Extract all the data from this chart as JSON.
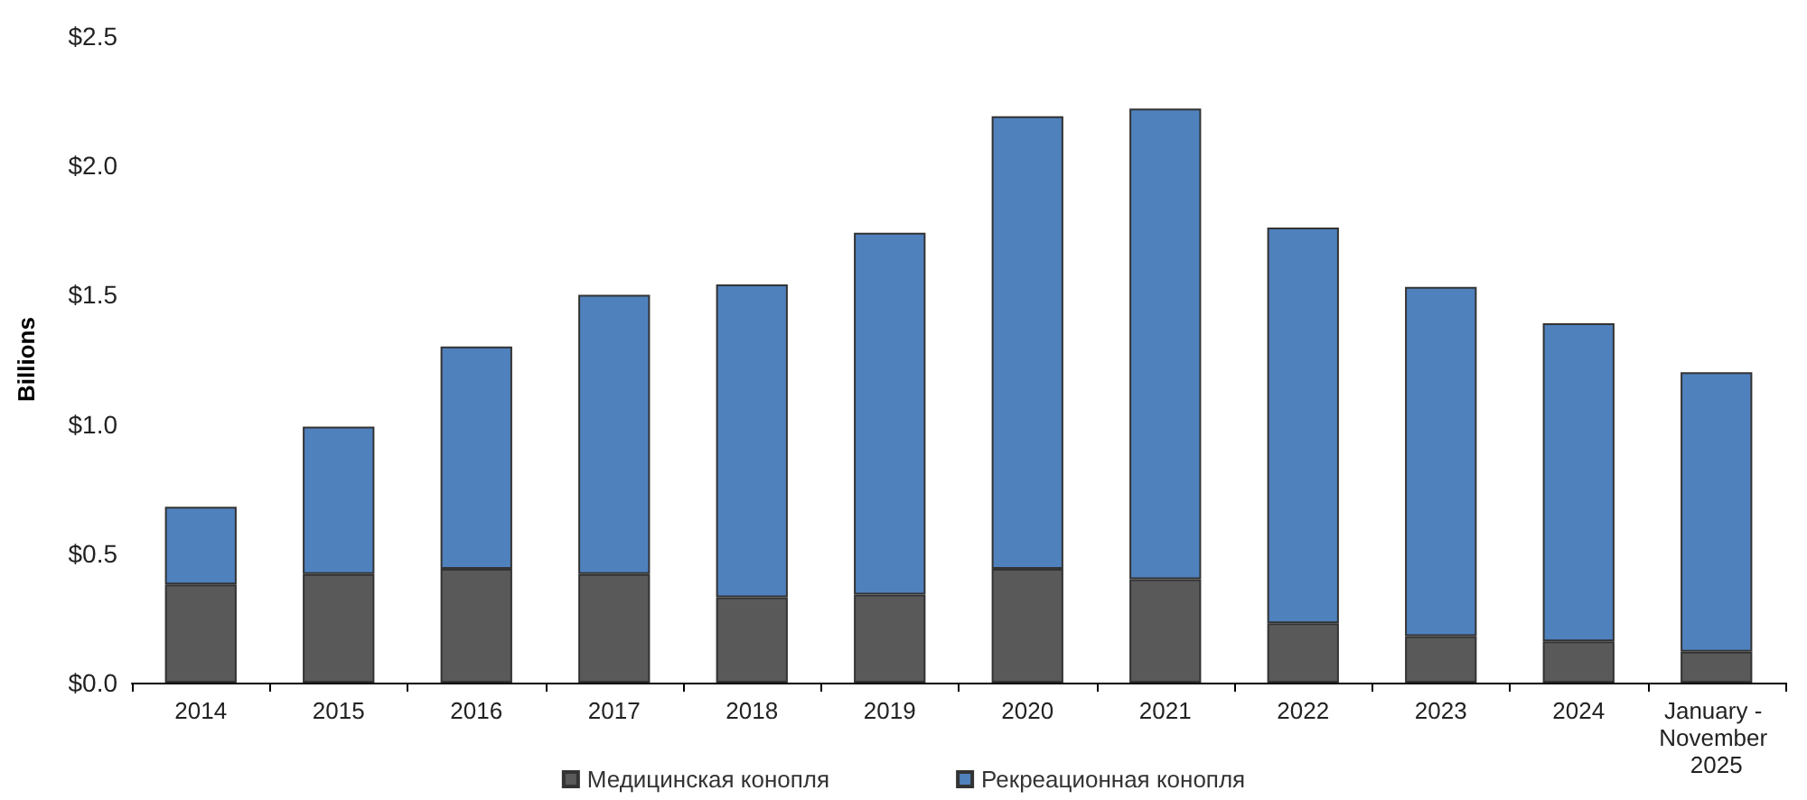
{
  "chart_data": {
    "type": "bar",
    "stacked": true,
    "ylabel": "Billions",
    "categories": [
      "2014",
      "2015",
      "2016",
      "2017",
      "2018",
      "2019",
      "2020",
      "2021",
      "2022",
      "2023",
      "2024",
      "January - November 2025"
    ],
    "series": [
      {
        "name": "Медицинская конопля",
        "color": "#595959",
        "values": [
          0.38,
          0.42,
          0.44,
          0.42,
          0.33,
          0.34,
          0.44,
          0.4,
          0.23,
          0.18,
          0.16,
          0.12
        ]
      },
      {
        "name": "Рекреационная конопля",
        "color": "#4f81bd",
        "values": [
          0.3,
          0.57,
          0.86,
          1.08,
          1.21,
          1.4,
          1.75,
          1.82,
          1.53,
          1.35,
          1.23,
          1.08
        ]
      }
    ],
    "ylim": [
      0,
      2.5
    ],
    "yticks": [
      {
        "value": 0,
        "label": "$0.0"
      },
      {
        "value": 0.5,
        "label": "$0.5"
      },
      {
        "value": 1,
        "label": "$1.0"
      },
      {
        "value": 1.5,
        "label": "$1.5"
      },
      {
        "value": 2,
        "label": "$2.0"
      },
      {
        "value": 2.5,
        "label": "$2.5"
      }
    ],
    "grid": false,
    "legend": "bottom"
  }
}
